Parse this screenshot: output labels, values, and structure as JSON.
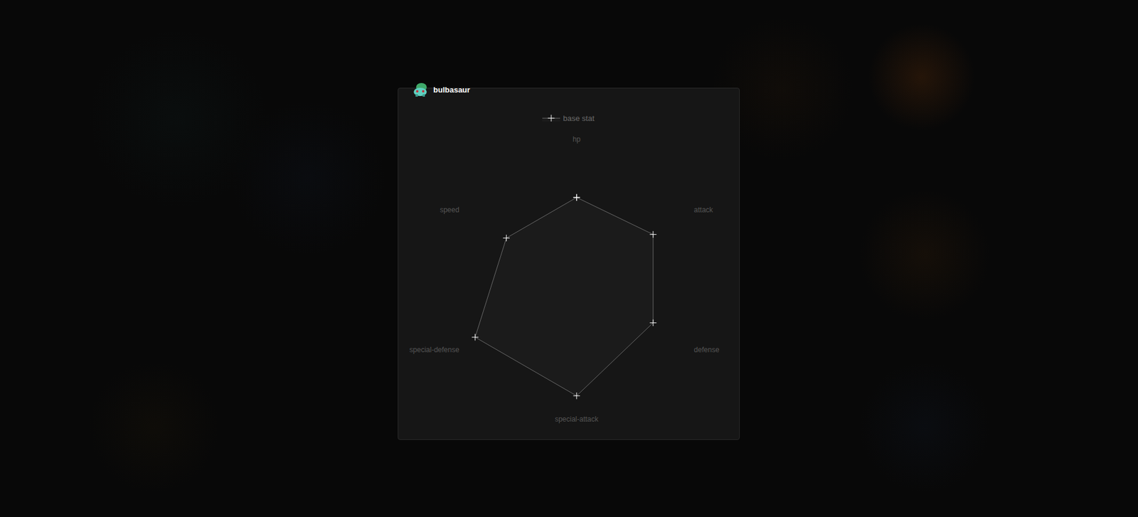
{
  "chart_data": {
    "type": "radar",
    "title": "bulbasaur",
    "categories": [
      "hp",
      "attack",
      "defense",
      "special-attack",
      "special-defense",
      "speed"
    ],
    "series": [
      {
        "name": "base stat",
        "color": "#cfcfcf",
        "values": [
          45,
          49,
          49,
          65,
          65,
          45
        ]
      }
    ],
    "ylim": [
      0,
      75
    ],
    "grid": false,
    "tick_labels": "x",
    "marker": "plus"
  }
}
